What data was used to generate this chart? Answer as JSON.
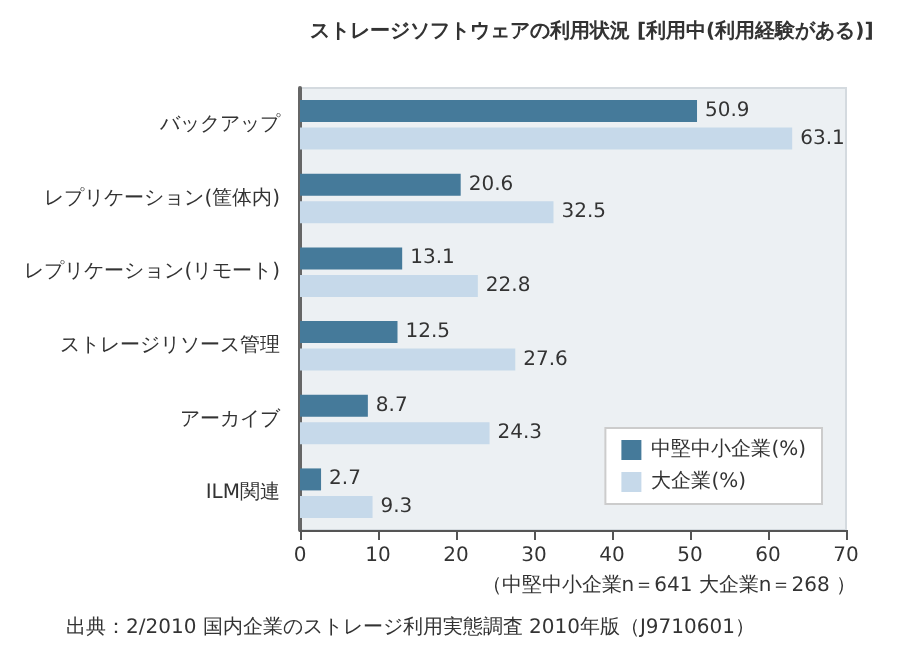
{
  "chart_data": {
    "type": "bar",
    "orientation": "horizontal",
    "title": "ストレージソフトウェアの利用状況 [利用中(利用経験がある)]",
    "categories": [
      "バックアップ",
      "レプリケーション(筐体内)",
      "レプリケーション(リモート)",
      "ストレージリソース管理",
      "アーカイブ",
      "ILM関連"
    ],
    "series": [
      {
        "name": "中堅中小企業(%)",
        "color": "#457a9a",
        "values": [
          50.9,
          20.6,
          13.1,
          12.5,
          8.7,
          2.7
        ]
      },
      {
        "name": "大企業(%)",
        "color": "#c6d9ea",
        "values": [
          63.1,
          32.5,
          22.8,
          27.6,
          24.3,
          9.3
        ]
      }
    ],
    "xlim": [
      0,
      70
    ],
    "xticks": [
      0,
      10,
      20,
      30,
      40,
      50,
      60,
      70
    ],
    "data_labels": true,
    "grid": false,
    "legend": "bottom right",
    "annotations": [
      "（中堅中小企業n＝641 大企業n＝268 ）",
      "出典：2/2010 国内企業のストレージ利用実態調査 2010年版（J9710601）"
    ]
  }
}
